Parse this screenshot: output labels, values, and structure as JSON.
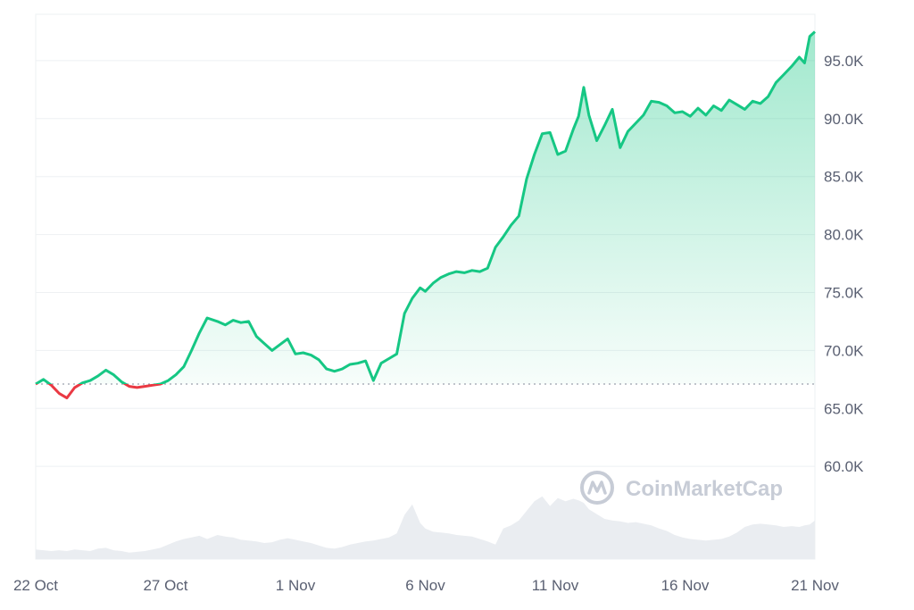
{
  "chart_data": {
    "type": "line",
    "title": "",
    "xlabel": "",
    "ylabel": "",
    "watermark": "CoinMarketCap",
    "x_ticks": [
      "22 Oct",
      "27 Oct",
      "1 Nov",
      "6 Nov",
      "11 Nov",
      "16 Nov",
      "21 Nov"
    ],
    "y_ticks": [
      "60.0K",
      "65.0K",
      "70.0K",
      "75.0K",
      "80.0K",
      "85.0K",
      "90.0K",
      "95.0K"
    ],
    "y_tick_values": [
      60000,
      65000,
      70000,
      75000,
      80000,
      85000,
      90000,
      95000
    ],
    "ylim": [
      52000,
      99000
    ],
    "x_range_days": [
      0,
      30
    ],
    "grid": true,
    "baseline": 67100,
    "colors": {
      "up": "#16c784",
      "down": "#ea3943",
      "volume": "#eaedf1",
      "grid": "#eef0f3",
      "text": "#5a6072"
    },
    "series": [
      {
        "x": [
          0,
          0.3,
          0.6,
          0.9,
          1.2,
          1.5,
          1.8,
          2.1,
          2.4,
          2.7,
          3.0,
          3.3,
          3.6,
          3.9,
          4.2,
          4.5,
          4.8,
          5.1,
          5.4,
          5.7,
          6.0,
          6.3,
          6.6,
          7.0,
          7.3,
          7.6,
          7.9,
          8.2,
          8.5,
          8.8,
          9.1,
          9.4,
          9.7,
          10.0,
          10.3,
          10.6,
          10.9,
          11.2,
          11.5,
          11.8,
          12.1,
          12.4,
          12.7,
          13.0,
          13.3,
          13.6,
          13.9,
          14.2,
          14.5,
          14.8,
          15.0,
          15.3,
          15.6,
          15.9,
          16.2,
          16.5,
          16.8,
          17.1,
          17.4,
          17.7,
          18.0,
          18.3,
          18.6,
          18.9,
          19.2,
          19.5,
          19.8,
          20.1,
          20.4,
          20.7,
          20.9,
          21.1,
          21.3,
          21.6,
          21.9,
          22.2,
          22.5,
          22.8,
          23.1,
          23.4,
          23.7,
          24.0,
          24.3,
          24.6,
          24.9,
          25.2,
          25.5,
          25.8,
          26.1,
          26.4,
          26.7,
          27.0,
          27.3,
          27.6,
          27.9,
          28.2,
          28.5,
          28.8,
          29.1,
          29.4,
          29.6,
          29.8,
          30.0
        ],
        "values": [
          67100,
          67500,
          67000,
          66300,
          65900,
          66800,
          67200,
          67400,
          67800,
          68300,
          67900,
          67300,
          66900,
          66800,
          66900,
          67000,
          67100,
          67400,
          67900,
          68600,
          70000,
          71500,
          72800,
          72500,
          72200,
          72600,
          72400,
          72500,
          71200,
          70600,
          70000,
          70500,
          71000,
          69700,
          69800,
          69600,
          69200,
          68400,
          68200,
          68400,
          68800,
          68900,
          69100,
          67400,
          68900,
          69300,
          69700,
          73200,
          74500,
          75400,
          75100,
          75800,
          76300,
          76600,
          76800,
          76700,
          76900,
          76800,
          77100,
          78900,
          79800,
          80800,
          81600,
          84800,
          86900,
          88700,
          88800,
          86900,
          87200,
          89100,
          90200,
          92700,
          90300,
          88100,
          89400,
          90800,
          87500,
          88900,
          89600,
          90300,
          91500,
          91400,
          91100,
          90500,
          90600,
          90200,
          90900,
          90300,
          91100,
          90700,
          91600,
          91200,
          90800,
          91500,
          91300,
          91900,
          93100,
          93800,
          94500,
          95300,
          94800,
          97100,
          97500
        ],
        "volume": [
          0.12,
          0.11,
          0.1,
          0.11,
          0.1,
          0.12,
          0.11,
          0.1,
          0.13,
          0.14,
          0.11,
          0.1,
          0.08,
          0.09,
          0.1,
          0.12,
          0.14,
          0.18,
          0.22,
          0.25,
          0.27,
          0.29,
          0.25,
          0.3,
          0.28,
          0.27,
          0.24,
          0.23,
          0.22,
          0.2,
          0.21,
          0.24,
          0.26,
          0.24,
          0.22,
          0.2,
          0.17,
          0.14,
          0.13,
          0.15,
          0.18,
          0.2,
          0.22,
          0.23,
          0.25,
          0.27,
          0.32,
          0.55,
          0.68,
          0.45,
          0.38,
          0.34,
          0.33,
          0.32,
          0.3,
          0.29,
          0.28,
          0.25,
          0.22,
          0.18,
          0.38,
          0.42,
          0.48,
          0.6,
          0.72,
          0.78,
          0.66,
          0.76,
          0.72,
          0.75,
          0.73,
          0.7,
          0.62,
          0.56,
          0.5,
          0.48,
          0.47,
          0.45,
          0.46,
          0.44,
          0.42,
          0.38,
          0.35,
          0.3,
          0.27,
          0.25,
          0.24,
          0.23,
          0.24,
          0.25,
          0.28,
          0.33,
          0.4,
          0.43,
          0.44,
          0.43,
          0.42,
          0.4,
          0.41,
          0.4,
          0.42,
          0.43,
          0.48
        ]
      }
    ]
  }
}
